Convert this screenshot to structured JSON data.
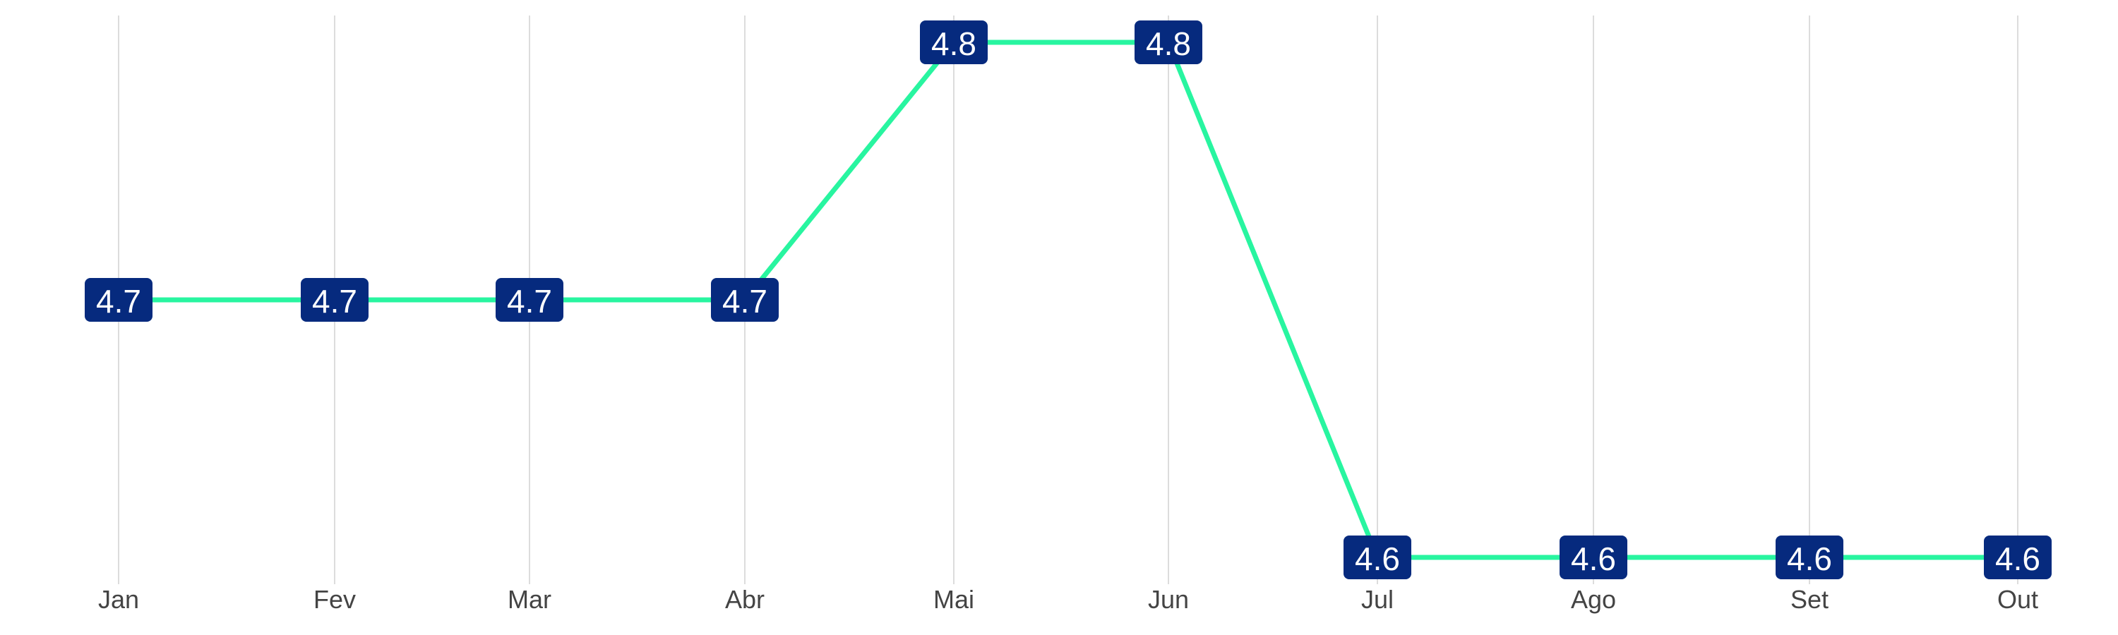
{
  "chart_data": {
    "type": "line",
    "categories": [
      "Jan",
      "Fev",
      "Mar",
      "Abr",
      "Mai",
      "Jun",
      "Jul",
      "Ago",
      "Set",
      "Out"
    ],
    "series": [
      {
        "values": [
          4.7,
          4.7,
          4.7,
          4.7,
          4.8,
          4.8,
          4.6,
          4.6,
          4.6,
          4.6
        ]
      }
    ],
    "ylim": [
      4.6,
      4.8
    ],
    "grid": "vertical",
    "legend": "none",
    "colors": {
      "line": "#28f5a0",
      "label_bg": "#062a7e",
      "label_text": "#ffffff",
      "grid": "#dcdcdc",
      "tick_text": "#444444"
    }
  }
}
